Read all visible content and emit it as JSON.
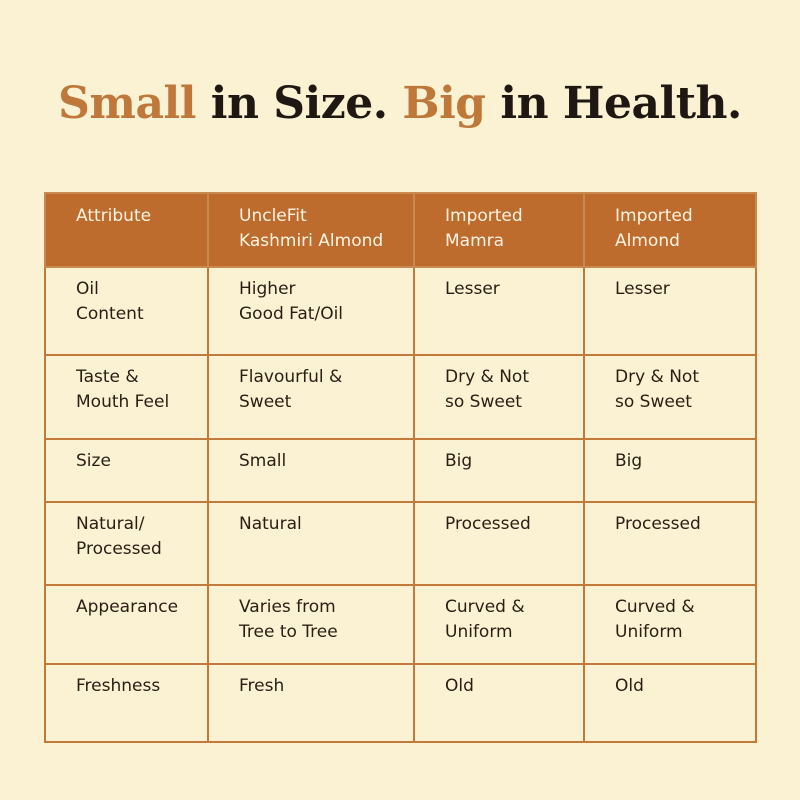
{
  "headline": {
    "part1": "Small",
    "part2": " in Size. ",
    "part3": "Big",
    "part4": " in Health.",
    "accent_color": "#c0773a",
    "text_color": "#1e1712"
  },
  "table": {
    "header_bg": "#bd6c2d",
    "border_color": "#c27a3a",
    "columns": [
      "Attribute",
      "UncleFit\nKashmiri Almond",
      "Imported\nMamra",
      "Imported\nAlmond"
    ],
    "rows": [
      [
        "Oil\nContent",
        "Higher\nGood Fat/Oil",
        "Lesser",
        "Lesser"
      ],
      [
        "Taste &\nMouth Feel",
        "Flavourful &\nSweet",
        "Dry & Not\nso Sweet",
        "Dry & Not\nso Sweet"
      ],
      [
        "Size",
        "Small",
        "Big",
        "Big"
      ],
      [
        "Natural/\nProcessed",
        "Natural",
        "Processed",
        "Processed"
      ],
      [
        "Appearance",
        "Varies from\nTree to Tree",
        "Curved &\nUniform",
        "Curved &\nUniform"
      ],
      [
        "Freshness",
        "Fresh",
        "Old",
        "Old"
      ]
    ]
  }
}
